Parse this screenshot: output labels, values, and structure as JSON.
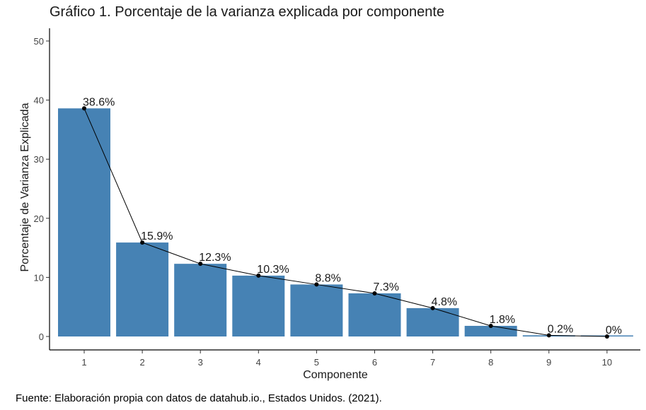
{
  "chart_data": {
    "type": "bar",
    "title": "Gráfico 1. Porcentaje de la varianza explicada por componente",
    "xlabel": "Componente",
    "ylabel": "Porcentaje de Varianza Explicada",
    "categories": [
      "1",
      "2",
      "3",
      "4",
      "5",
      "6",
      "7",
      "8",
      "9",
      "10"
    ],
    "values": [
      38.6,
      15.9,
      12.3,
      10.3,
      8.8,
      7.3,
      4.8,
      1.8,
      0.2,
      0
    ],
    "data_labels": [
      "38.6%",
      "15.9%",
      "12.3%",
      "10.3%",
      "8.8%",
      "7.3%",
      "4.8%",
      "1.8%",
      "0.2%",
      "0%"
    ],
    "y_ticks": [
      0,
      10,
      20,
      30,
      40,
      50
    ],
    "ylim": [
      0,
      51
    ],
    "overlay": "line-with-points",
    "grid": false,
    "legend": "none",
    "colors": {
      "bar": "#4682b4",
      "line": "#000000",
      "axis": "#000000",
      "text": "#1a1a1a"
    }
  },
  "source_note": "Fuente: Elaboración propia con datos de datahub.io., Estados Unidos. (2021)."
}
